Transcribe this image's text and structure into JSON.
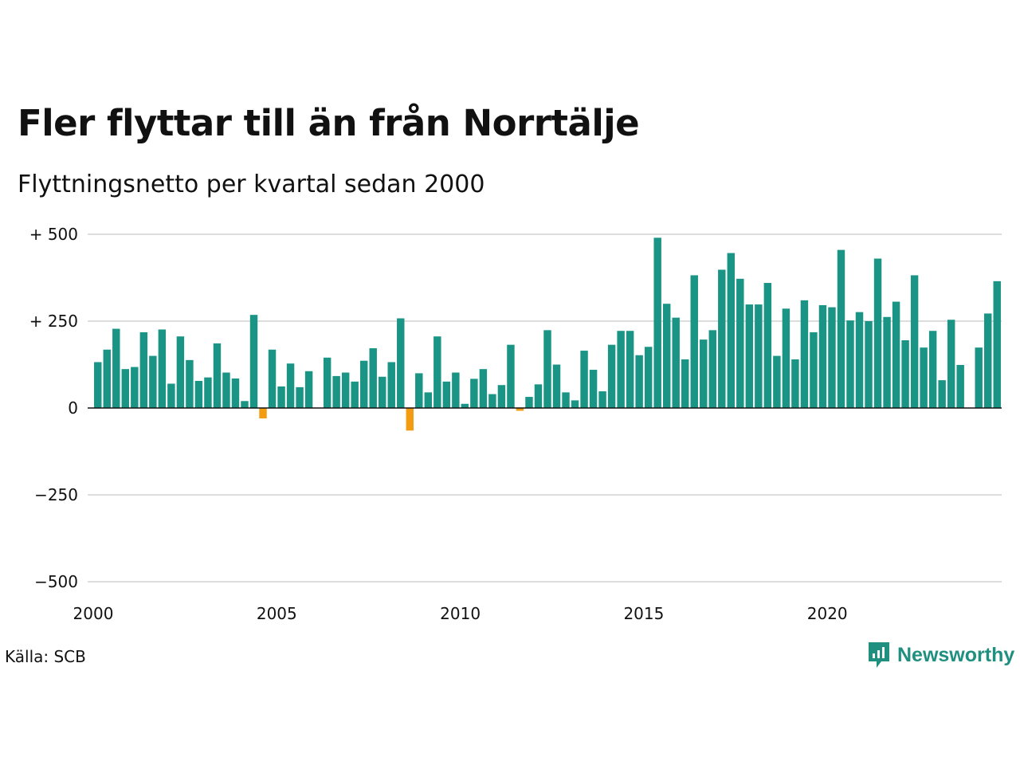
{
  "chart_data": {
    "type": "bar",
    "title": "Fler flyttar till än från Norrtälje",
    "subtitle": "Flyttningsnetto per kvartal sedan 2000",
    "source": "Källa: SCB",
    "brand": "Newsworthy",
    "ylim": [
      -500,
      500
    ],
    "xlim": [
      2000,
      2024.75
    ],
    "grid": true,
    "y_ticks": [
      {
        "value": 500,
        "label": "+ 500"
      },
      {
        "value": 250,
        "label": "+ 250"
      },
      {
        "value": 0,
        "label": "0"
      },
      {
        "value": -250,
        "label": "−250"
      },
      {
        "value": -500,
        "label": "−500"
      }
    ],
    "x_ticks": [
      {
        "value": 2000,
        "label": "2000"
      },
      {
        "value": 2005,
        "label": "2005"
      },
      {
        "value": 2010,
        "label": "2010"
      },
      {
        "value": 2015,
        "label": "2015"
      },
      {
        "value": 2020,
        "label": "2020"
      }
    ],
    "series": [
      {
        "start_year": 2000,
        "periods_per_year": 4,
        "values": [
          132,
          168,
          228,
          112,
          118,
          218,
          150,
          226,
          70,
          206,
          138,
          78,
          88,
          186,
          102,
          85,
          20,
          268,
          -30,
          168,
          62,
          128,
          60,
          106,
          0,
          145,
          92,
          102,
          76,
          136,
          172,
          90,
          132,
          258,
          -65,
          100,
          45,
          206,
          76,
          102,
          12,
          84,
          112,
          40,
          66,
          182,
          -8,
          32,
          68,
          224,
          125,
          45,
          22,
          165,
          110,
          48,
          182,
          222,
          222,
          152,
          176,
          490,
          300,
          260,
          140,
          382,
          197,
          224,
          398,
          446,
          372,
          298,
          298,
          360,
          150,
          286,
          140,
          310,
          218,
          296,
          290,
          455,
          252,
          276,
          250,
          430,
          262,
          306,
          195,
          382,
          174,
          222,
          80,
          254,
          124,
          0,
          174,
          272,
          365
        ]
      }
    ],
    "colors": {
      "positive": "#1a9585",
      "negative": "#f39c12",
      "grid": "#dddddd",
      "zero_line": "#111111"
    }
  }
}
